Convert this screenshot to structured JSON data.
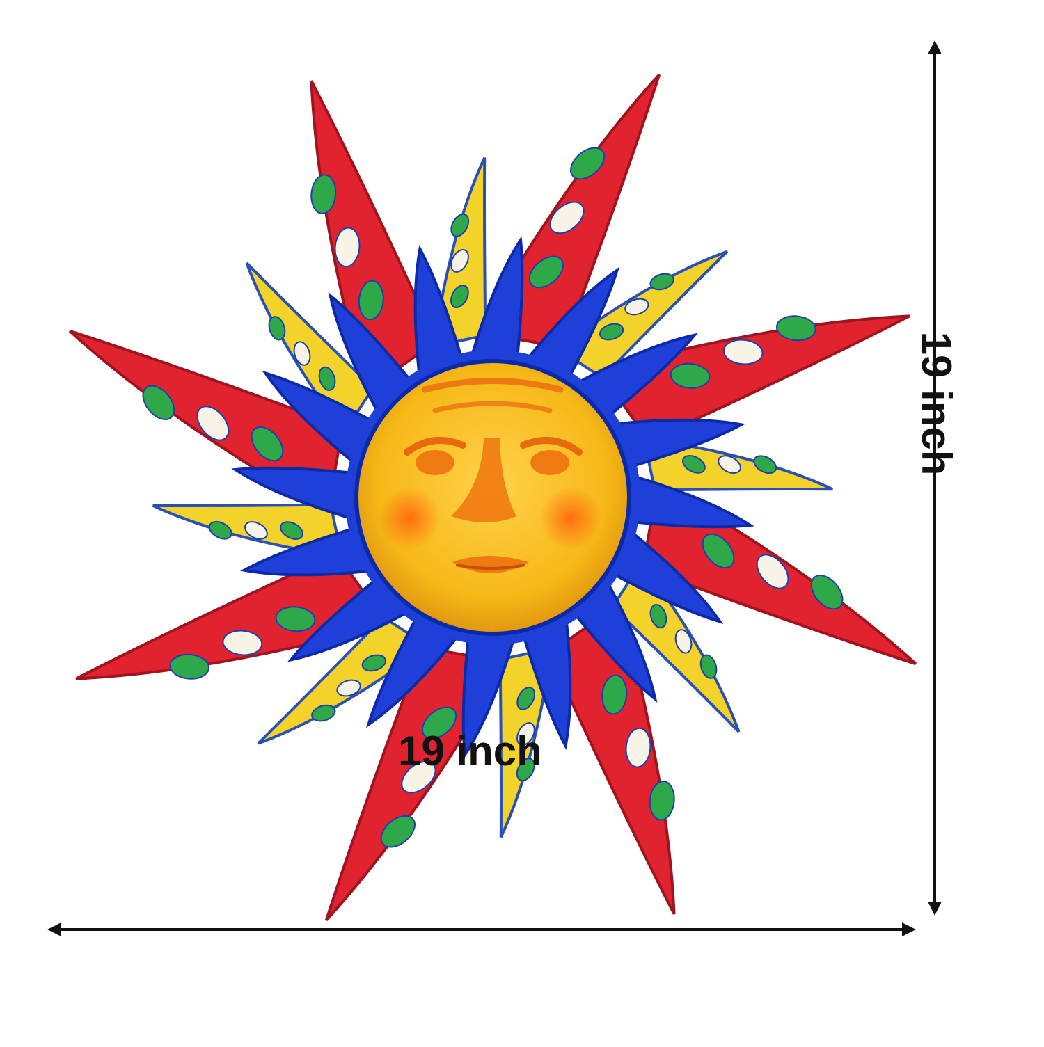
{
  "dimensions": {
    "width_label": "19 inch",
    "height_label": "19 inch"
  },
  "colors": {
    "background": "#ffffff",
    "arrow": "#111111",
    "long_ray_red": "#e0232f",
    "short_ray_yellow": "#f3d22a",
    "inner_ray_blue": "#1e3fd8",
    "face_yellow": "#f6b817",
    "face_orange": "#f07a12",
    "leaf_green": "#2fa84a",
    "pattern_blue": "#1c3fb0"
  },
  "icons": {
    "artwork": "sun-face-wall-art",
    "width_arrow": "double-arrow-horizontal",
    "height_arrow": "double-arrow-vertical"
  }
}
